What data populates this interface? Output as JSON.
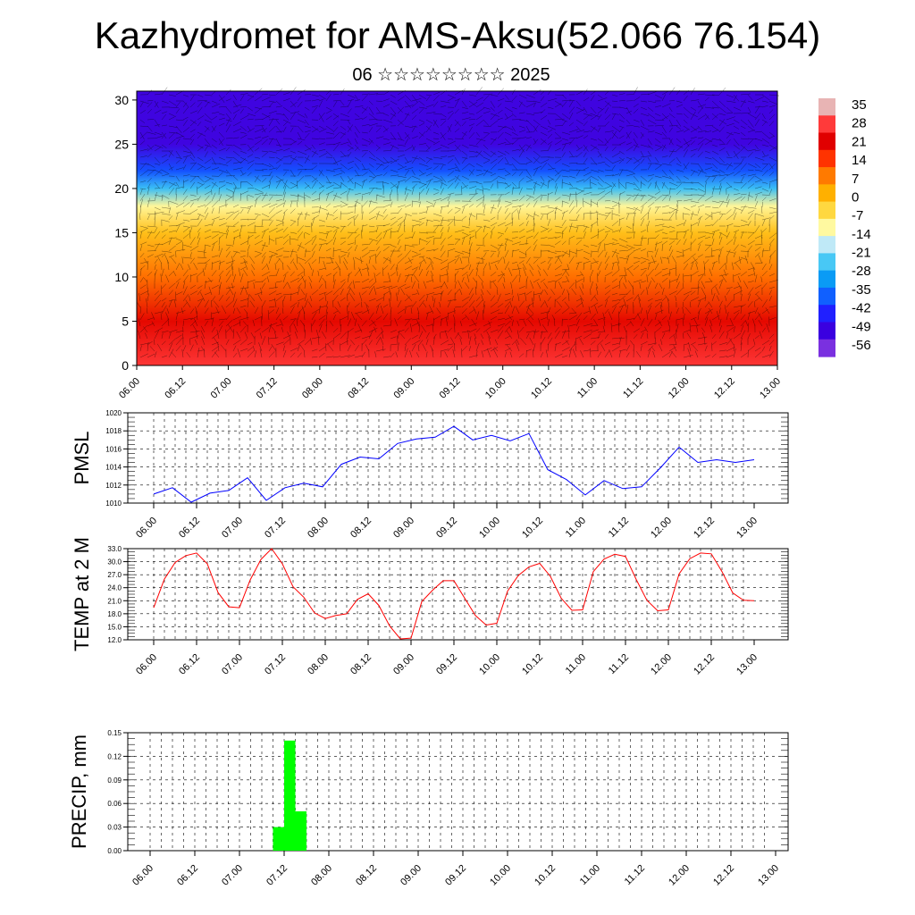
{
  "header": {
    "title": "Kazhydromet for AMS-Aksu(52.066 76.154)",
    "subtitle": "06 ☆☆☆☆☆☆☆☆ 2025"
  },
  "colors": {
    "pmsl_line": "#0000ff",
    "temp_line": "#ff0000",
    "precip_bar": "#00ff00",
    "colorbar": [
      "#e8b4b4",
      "#ff3a3a",
      "#e00000",
      "#ff3300",
      "#ff7a00",
      "#ffb000",
      "#ffd840",
      "#fff9a0",
      "#bfe9f7",
      "#48c8f5",
      "#0a9bf5",
      "#1060ff",
      "#2020ff",
      "#3a00e0",
      "#7a30e0"
    ]
  },
  "chart_data": [
    {
      "type": "heatmap",
      "name": "cross-section",
      "x_ticks": [
        "06.00",
        "06.12",
        "07.00",
        "07.12",
        "08.00",
        "08.12",
        "09.00",
        "09.12",
        "10.00",
        "10.12",
        "11.00",
        "11.12",
        "12.00",
        "12.12",
        "13.00"
      ],
      "ylim": [
        0,
        31
      ],
      "y_ticks": [
        0,
        5,
        10,
        15,
        20,
        25,
        30
      ],
      "y_tick_labels": [
        "0",
        "5",
        "10",
        "15",
        "20",
        "25",
        "30"
      ],
      "colorbar_labels": [
        "35",
        "28",
        "21",
        "14",
        "7",
        "0",
        "-7",
        "-14",
        "-21",
        "-28",
        "-35",
        "-42",
        "-49",
        "-56"
      ],
      "colorbar_values": [
        35,
        28,
        21,
        14,
        7,
        0,
        -7,
        -14,
        -21,
        -28,
        -35,
        -42,
        -49,
        -56
      ],
      "level_temperature": [
        {
          "level": 0,
          "value": 28
        },
        {
          "level": 5,
          "value": 21
        },
        {
          "level": 10,
          "value": 10
        },
        {
          "level": 15,
          "value": 0
        },
        {
          "level": 18,
          "value": -10
        },
        {
          "level": 20,
          "value": -25
        },
        {
          "level": 22,
          "value": -38
        },
        {
          "level": 25,
          "value": -50
        },
        {
          "level": 31,
          "value": -50
        }
      ],
      "wind_vectors": true
    },
    {
      "type": "line",
      "name": "pmsl",
      "ylabel": "PMSL",
      "ylim": [
        1010,
        1020
      ],
      "y_ticks": [
        1010,
        1012,
        1014,
        1016,
        1018,
        1020
      ],
      "y_tick_labels": [
        "1010",
        "1012",
        "1014",
        "1016",
        "1018",
        "1020"
      ],
      "x_ticks": [
        "06.00",
        "06.12",
        "07.00",
        "07.12",
        "08.00",
        "08.12",
        "09.00",
        "09.12",
        "10.00",
        "10.12",
        "11.00",
        "11.12",
        "12.00",
        "12.12",
        "13.00"
      ],
      "series": [
        {
          "values": [
            1011.0,
            1011.7,
            1010.1,
            1011.1,
            1011.4,
            1012.8,
            1010.3,
            1011.7,
            1012.2,
            1011.8,
            1014.3,
            1015.1,
            1014.9,
            1016.6,
            1017.1,
            1017.3,
            1018.5,
            1017.0,
            1017.5,
            1016.9,
            1017.7,
            1013.7,
            1012.6,
            1010.9,
            1012.5,
            1011.6,
            1011.8,
            1013.9,
            1016.2,
            1014.5,
            1014.8,
            1014.5,
            1014.8
          ]
        }
      ]
    },
    {
      "type": "line",
      "name": "temp",
      "ylabel": "TEMP at 2 M",
      "ylim": [
        12.0,
        33.0
      ],
      "y_ticks": [
        12,
        15,
        18,
        21,
        24,
        27,
        30,
        33
      ],
      "y_tick_labels": [
        "12.0",
        "15.0",
        "18.0",
        "21.0",
        "24.0",
        "27.0",
        "30.0",
        "33.0"
      ],
      "x_ticks": [
        "06.00",
        "06.12",
        "07.00",
        "07.12",
        "08.00",
        "08.12",
        "09.00",
        "09.12",
        "10.00",
        "10.12",
        "11.00",
        "11.12",
        "12.00",
        "12.12",
        "13.00"
      ],
      "series": [
        {
          "values": [
            19.4,
            26.0,
            29.8,
            31.4,
            32.0,
            29.5,
            22.9,
            19.6,
            19.4,
            25.8,
            30.5,
            33.0,
            29.5,
            24.2,
            21.8,
            18.2,
            16.9,
            17.6,
            18.0,
            21.3,
            22.6,
            19.9,
            15.2,
            12.2,
            12.4,
            20.8,
            23.4,
            25.6,
            25.6,
            21.6,
            17.6,
            15.4,
            15.8,
            23.2,
            26.8,
            28.8,
            29.6,
            26.6,
            21.6,
            18.8,
            18.9,
            27.7,
            30.6,
            31.7,
            31.2,
            25.9,
            21.1,
            18.7,
            18.9,
            27.2,
            30.7,
            32.0,
            31.8,
            27.7,
            22.8,
            21.1,
            21.0
          ]
        }
      ]
    },
    {
      "type": "bar",
      "name": "precip",
      "ylabel": "PRECIP, mm",
      "ylim": [
        0,
        0.15
      ],
      "y_ticks": [
        0,
        0.03,
        0.06,
        0.09,
        0.12,
        0.15
      ],
      "y_tick_labels": [
        "0.00",
        "0.03",
        "0.06",
        "0.09",
        "0.12",
        "0.15"
      ],
      "x_ticks": [
        "06.00",
        "06.12",
        "07.00",
        "07.12",
        "08.00",
        "08.12",
        "09.00",
        "09.12",
        "10.00",
        "10.12",
        "11.00",
        "11.12",
        "12.00",
        "12.12",
        "13.00"
      ],
      "bars": [
        {
          "start_hour": 33,
          "end_hour": 36,
          "value": 0.03
        },
        {
          "start_hour": 36,
          "end_hour": 39,
          "value": 0.14
        },
        {
          "start_hour": 39,
          "end_hour": 42,
          "value": 0.05
        }
      ]
    }
  ]
}
